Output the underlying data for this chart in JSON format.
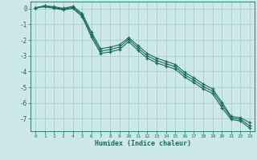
{
  "xlabel": "Humidex (Indice chaleur)",
  "bg_color": "#cde8e8",
  "grid_color": "#a8cccc",
  "line_color": "#1a6b5a",
  "xlim": [
    -0.5,
    23.5
  ],
  "ylim": [
    -7.8,
    0.45
  ],
  "x_ticks": [
    0,
    1,
    2,
    3,
    4,
    5,
    6,
    7,
    8,
    9,
    10,
    11,
    12,
    13,
    14,
    15,
    16,
    17,
    18,
    19,
    20,
    21,
    22,
    23
  ],
  "y_ticks": [
    0,
    -1,
    -2,
    -3,
    -4,
    -5,
    -6,
    -7
  ],
  "line1_x": [
    0,
    1,
    2,
    3,
    4,
    5,
    6,
    7,
    8,
    9,
    10,
    11,
    12,
    13,
    14,
    15,
    16,
    17,
    18,
    19,
    20,
    21,
    22,
    23
  ],
  "line1_y": [
    0.05,
    0.18,
    0.12,
    0.02,
    0.15,
    -0.3,
    -1.5,
    -2.55,
    -2.45,
    -2.3,
    -1.85,
    -2.35,
    -2.85,
    -3.15,
    -3.35,
    -3.55,
    -4.05,
    -4.4,
    -4.8,
    -5.1,
    -5.95,
    -6.85,
    -6.95,
    -7.25
  ],
  "line2_x": [
    0,
    1,
    2,
    3,
    4,
    5,
    6,
    7,
    8,
    9,
    10,
    11,
    12,
    13,
    14,
    15,
    16,
    17,
    18,
    19,
    20,
    21,
    22,
    23
  ],
  "line2_y": [
    0.05,
    0.18,
    0.07,
    -0.03,
    0.08,
    -0.4,
    -1.65,
    -2.7,
    -2.6,
    -2.45,
    -1.95,
    -2.5,
    -3.0,
    -3.3,
    -3.5,
    -3.7,
    -4.2,
    -4.55,
    -4.95,
    -5.25,
    -6.1,
    -6.95,
    -7.05,
    -7.45
  ],
  "line3_x": [
    0,
    1,
    2,
    3,
    4,
    5,
    6,
    7,
    8,
    9,
    10,
    11,
    12,
    13,
    14,
    15,
    16,
    17,
    18,
    19,
    20,
    21,
    22,
    23
  ],
  "line3_y": [
    0.05,
    0.12,
    0.02,
    -0.08,
    0.02,
    -0.5,
    -1.8,
    -2.85,
    -2.75,
    -2.6,
    -2.1,
    -2.65,
    -3.15,
    -3.45,
    -3.65,
    -3.85,
    -4.35,
    -4.7,
    -5.1,
    -5.4,
    -6.3,
    -7.05,
    -7.15,
    -7.6
  ]
}
